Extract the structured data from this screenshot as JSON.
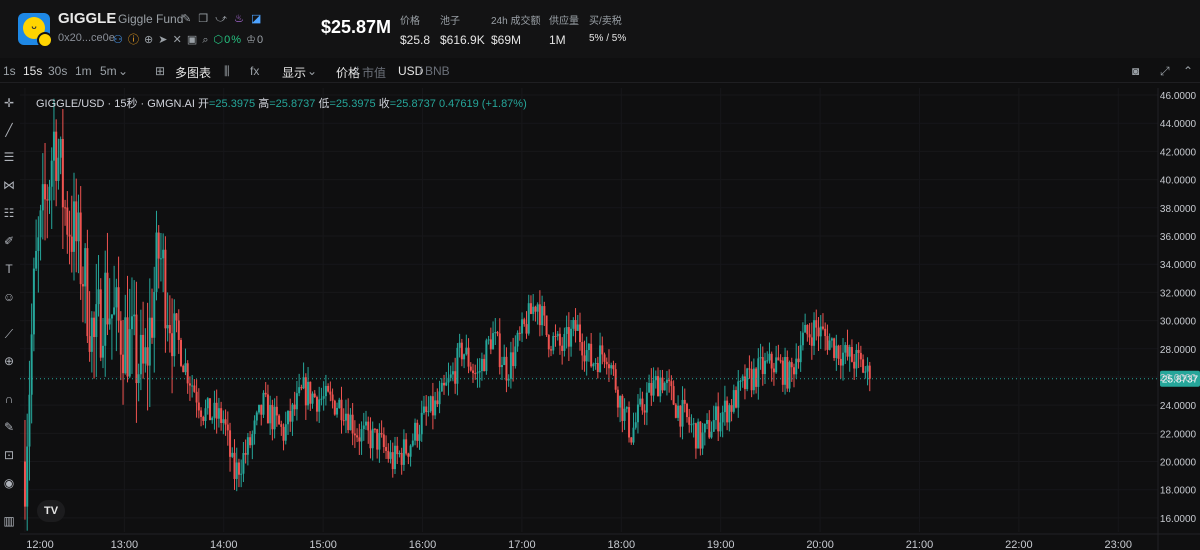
{
  "header": {
    "symbol": "GIGGLE",
    "name": "Giggle Fund",
    "address": "0x20...ce0e",
    "social_pct": "0%",
    "social_count": "0",
    "market_cap": "$25.87M",
    "stats": [
      {
        "label": "价格",
        "value": "$25.8"
      },
      {
        "label": "池子",
        "value": "$616.9K"
      },
      {
        "label": "24h 成交额",
        "value": "$69M"
      },
      {
        "label": "供应量",
        "value": "1M"
      },
      {
        "label": "买/卖税",
        "value": "5%  /  5%"
      }
    ],
    "icons": [
      "edit-icon",
      "copy-icon",
      "share-icon",
      "fire-icon",
      "verified-icon",
      "user-icon",
      "info-icon",
      "globe-icon",
      "telegram-icon",
      "twitter-icon",
      "chat-icon",
      "search-icon",
      "gem-icon",
      "crown-icon"
    ]
  },
  "toolbar": {
    "intervals": [
      "1s",
      "15s",
      "30s",
      "1m",
      "5m"
    ],
    "active_interval": "15s",
    "multi_chart": "多图表",
    "indicators_icon": "fx",
    "display": "显示",
    "price_label": "价格",
    "mcap_label": "市值",
    "quote": "USD",
    "alt_quote": "BNB"
  },
  "legend": {
    "pair": "GIGGLE/USD · 15秒 · GMGN.AI",
    "open_label": "开",
    "open": "=25.3975",
    "high_label": "高",
    "high": "=25.8737",
    "low_label": "低",
    "low": "=25.3975",
    "close_label": "收",
    "close": "=25.8737",
    "change": "0.47619 (+1.87%)"
  },
  "tv_logo": "TV",
  "colors": {
    "up": "#26a69a",
    "down": "#ef5350",
    "bg": "#0f0f10",
    "price_tag": "#26a69a"
  },
  "chart_data": {
    "type": "candlestick",
    "title": "GIGGLE/USD · 15秒 · GMGN.AI",
    "x_ticks": [
      "12:00",
      "13:00",
      "14:00",
      "15:00",
      "16:00",
      "17:00",
      "18:00",
      "19:00",
      "20:00",
      "21:00",
      "22:00",
      "23:00"
    ],
    "y_ticks": [
      16,
      18,
      20,
      22,
      24,
      26,
      28,
      30,
      32,
      34,
      36,
      38,
      40,
      42,
      44,
      46
    ],
    "y_tick_labels": [
      "16.0000",
      "18.0000",
      "20.0000",
      "22.0000",
      "24.0000",
      "26.0000",
      "28.0000",
      "30.0000",
      "32.0000",
      "34.0000",
      "36.0000",
      "38.0000",
      "40.0000",
      "42.0000",
      "44.0000",
      "46.0000"
    ],
    "ylim": [
      15,
      46.5
    ],
    "x_range_hours": [
      11.95,
      23.4
    ],
    "last_price": 25.8737,
    "last_price_label": "25.8737",
    "price_path": [
      [
        12.0,
        20.0
      ],
      [
        12.1,
        33.0
      ],
      [
        12.2,
        38.0
      ],
      [
        12.3,
        43.5
      ],
      [
        12.4,
        38.0
      ],
      [
        12.5,
        36.0
      ],
      [
        12.6,
        33.0
      ],
      [
        12.7,
        28.0
      ],
      [
        12.8,
        32.0
      ],
      [
        12.9,
        30.0
      ],
      [
        13.0,
        29.0
      ],
      [
        13.1,
        27.5
      ],
      [
        13.2,
        26.0
      ],
      [
        13.35,
        35.0
      ],
      [
        13.45,
        31.0
      ],
      [
        13.6,
        27.0
      ],
      [
        13.8,
        23.5
      ],
      [
        14.0,
        23.0
      ],
      [
        14.1,
        19.0
      ],
      [
        14.25,
        21.0
      ],
      [
        14.4,
        24.0
      ],
      [
        14.6,
        22.0
      ],
      [
        14.8,
        25.0
      ],
      [
        14.95,
        24.5
      ],
      [
        15.2,
        24.0
      ],
      [
        15.35,
        22.0
      ],
      [
        15.55,
        21.5
      ],
      [
        15.7,
        20.0
      ],
      [
        15.85,
        21.0
      ],
      [
        16.0,
        23.0
      ],
      [
        16.15,
        24.0
      ],
      [
        16.3,
        26.0
      ],
      [
        16.4,
        28.0
      ],
      [
        16.55,
        26.0
      ],
      [
        16.7,
        29.0
      ],
      [
        16.85,
        26.5
      ],
      [
        17.0,
        29.0
      ],
      [
        17.15,
        31.5
      ],
      [
        17.25,
        29.0
      ],
      [
        17.4,
        28.0
      ],
      [
        17.55,
        29.5
      ],
      [
        17.7,
        27.0
      ],
      [
        17.85,
        28.0
      ],
      [
        18.0,
        24.0
      ],
      [
        18.1,
        22.0
      ],
      [
        18.25,
        24.5
      ],
      [
        18.4,
        26.0
      ],
      [
        18.55,
        24.0
      ],
      [
        18.7,
        22.5
      ],
      [
        18.8,
        21.5
      ],
      [
        18.95,
        23.0
      ],
      [
        19.1,
        24.0
      ],
      [
        19.25,
        25.5
      ],
      [
        19.4,
        26.5
      ],
      [
        19.55,
        27.0
      ],
      [
        19.7,
        26.0
      ],
      [
        19.8,
        28.5
      ],
      [
        19.95,
        29.5
      ],
      [
        20.1,
        28.5
      ],
      [
        20.25,
        27.5
      ],
      [
        20.4,
        27.0
      ],
      [
        20.5,
        25.9
      ]
    ]
  }
}
